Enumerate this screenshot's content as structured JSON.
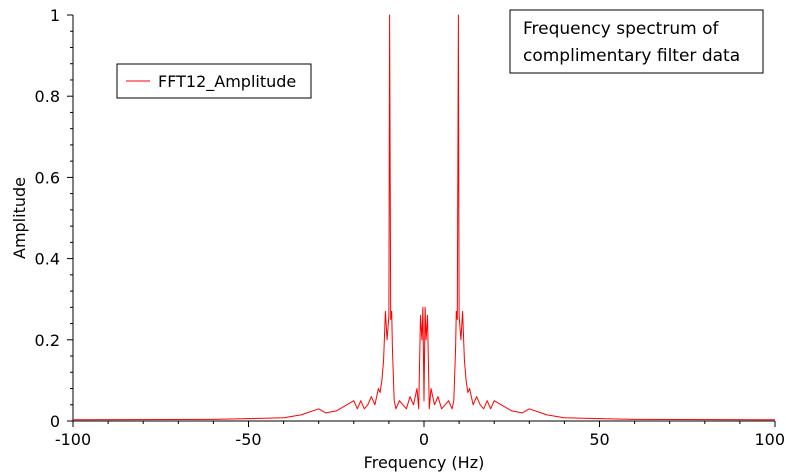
{
  "chart_data": {
    "type": "line",
    "title_lines": [
      "Frequency spectrum of",
      "complimentary filter data"
    ],
    "xlabel": "Frequency (Hz)",
    "ylabel": "Amplitude",
    "xlim": [
      -100,
      100
    ],
    "ylim": [
      0,
      1
    ],
    "x_ticks": [
      -100,
      -50,
      0,
      50,
      100
    ],
    "x_tick_labels": [
      "-100",
      "-50",
      "0",
      "50",
      "100"
    ],
    "y_ticks": [
      0,
      0.2,
      0.4,
      0.6,
      0.8,
      1
    ],
    "y_tick_labels": [
      "0",
      "0.2",
      "0.4",
      "0.6",
      "0.8",
      "1"
    ],
    "grid": false,
    "legend_position": "top-left",
    "series": [
      {
        "name": "FFT12_Amplitude",
        "color": "#ff0000",
        "x": [
          -100,
          -60,
          -50,
          -40,
          -35,
          -30,
          -28,
          -25,
          -22,
          -20,
          -19,
          -18,
          -17,
          -16,
          -15,
          -14,
          -13,
          -12.5,
          -12,
          -11.5,
          -11,
          -10.5,
          -10,
          -9.8,
          -9.5,
          -9.2,
          -9,
          -8.7,
          -8.5,
          -8,
          -7,
          -6,
          -5,
          -4,
          -3,
          -2,
          -1.5,
          -1,
          -0.6,
          -0.3,
          0,
          0.3,
          0.6,
          1,
          1.5,
          2,
          3,
          4,
          5,
          6,
          7,
          8,
          8.5,
          8.7,
          9,
          9.2,
          9.5,
          9.8,
          10,
          10.5,
          11,
          11.5,
          12,
          12.5,
          13,
          14,
          15,
          16,
          17,
          18,
          19,
          20,
          22,
          25,
          28,
          30,
          35,
          40,
          50,
          60,
          100
        ],
        "y": [
          0.003,
          0.004,
          0.006,
          0.008,
          0.015,
          0.03,
          0.02,
          0.025,
          0.04,
          0.05,
          0.03,
          0.05,
          0.03,
          0.04,
          0.06,
          0.04,
          0.08,
          0.07,
          0.1,
          0.15,
          0.27,
          0.2,
          0.26,
          1.0,
          0.25,
          0.27,
          0.18,
          0.1,
          0.05,
          0.03,
          0.05,
          0.04,
          0.03,
          0.06,
          0.04,
          0.08,
          0.03,
          0.26,
          0.2,
          0.28,
          0.05,
          0.28,
          0.2,
          0.26,
          0.03,
          0.08,
          0.04,
          0.06,
          0.03,
          0.04,
          0.05,
          0.03,
          0.05,
          0.1,
          0.18,
          0.27,
          0.25,
          1.0,
          0.26,
          0.2,
          0.27,
          0.15,
          0.1,
          0.07,
          0.08,
          0.04,
          0.06,
          0.04,
          0.03,
          0.05,
          0.03,
          0.05,
          0.04,
          0.025,
          0.02,
          0.03,
          0.015,
          0.008,
          0.006,
          0.004,
          0.003
        ]
      }
    ]
  }
}
